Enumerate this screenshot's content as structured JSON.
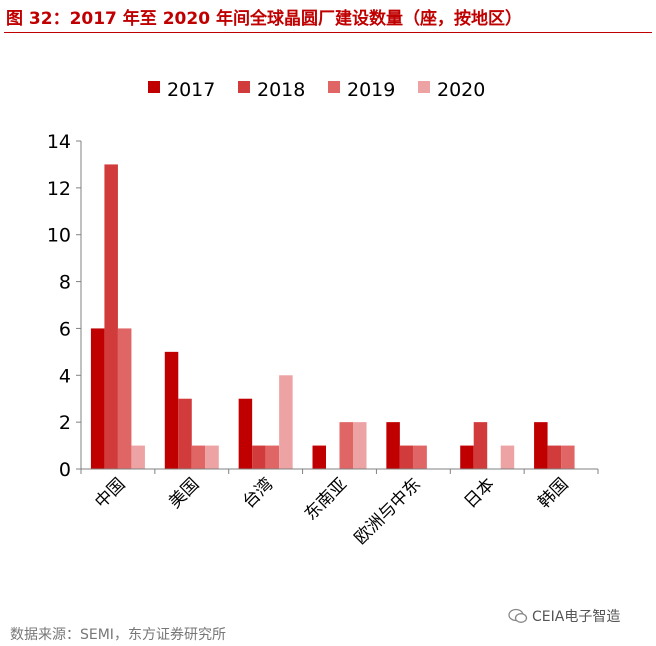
{
  "title": "图 32：2017 年至 2020 年间全球晶圆厂建设数量（座，按地区）",
  "source": "数据来源：SEMI，东方证券研究所",
  "watermark": "CEIA电子智造",
  "colors": [
    "#c00000",
    "#d23b3b",
    "#e06565",
    "#eda3a3"
  ],
  "chart_data": {
    "type": "bar",
    "categories": [
      "中国",
      "美国",
      "台湾",
      "东南亚",
      "欧洲与中东",
      "日本",
      "韩国"
    ],
    "series": [
      {
        "name": "2017",
        "values": [
          6,
          5,
          3,
          1,
          2,
          1,
          2
        ]
      },
      {
        "name": "2018",
        "values": [
          13,
          3,
          1,
          0,
          1,
          2,
          1
        ]
      },
      {
        "name": "2019",
        "values": [
          6,
          1,
          1,
          2,
          1,
          0,
          1
        ]
      },
      {
        "name": "2020",
        "values": [
          1,
          1,
          4,
          2,
          0,
          1,
          0
        ]
      }
    ],
    "yticks": [
      "0",
      "2",
      "4",
      "6",
      "8",
      "10",
      "12",
      "14"
    ],
    "ylim": [
      0,
      14
    ],
    "legend_position": "top",
    "grid": false
  }
}
